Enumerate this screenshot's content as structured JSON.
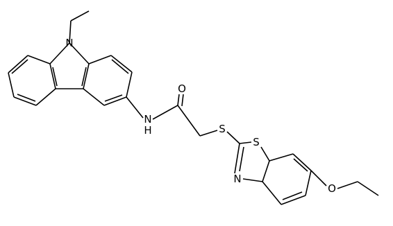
{
  "atoms": [
    {
      "label": "N"
    },
    {
      "label": "N"
    },
    {
      "label": "H"
    },
    {
      "label": "O"
    },
    {
      "label": "S"
    },
    {
      "label": "S"
    },
    {
      "label": "N"
    },
    {
      "label": "O"
    }
  ]
}
